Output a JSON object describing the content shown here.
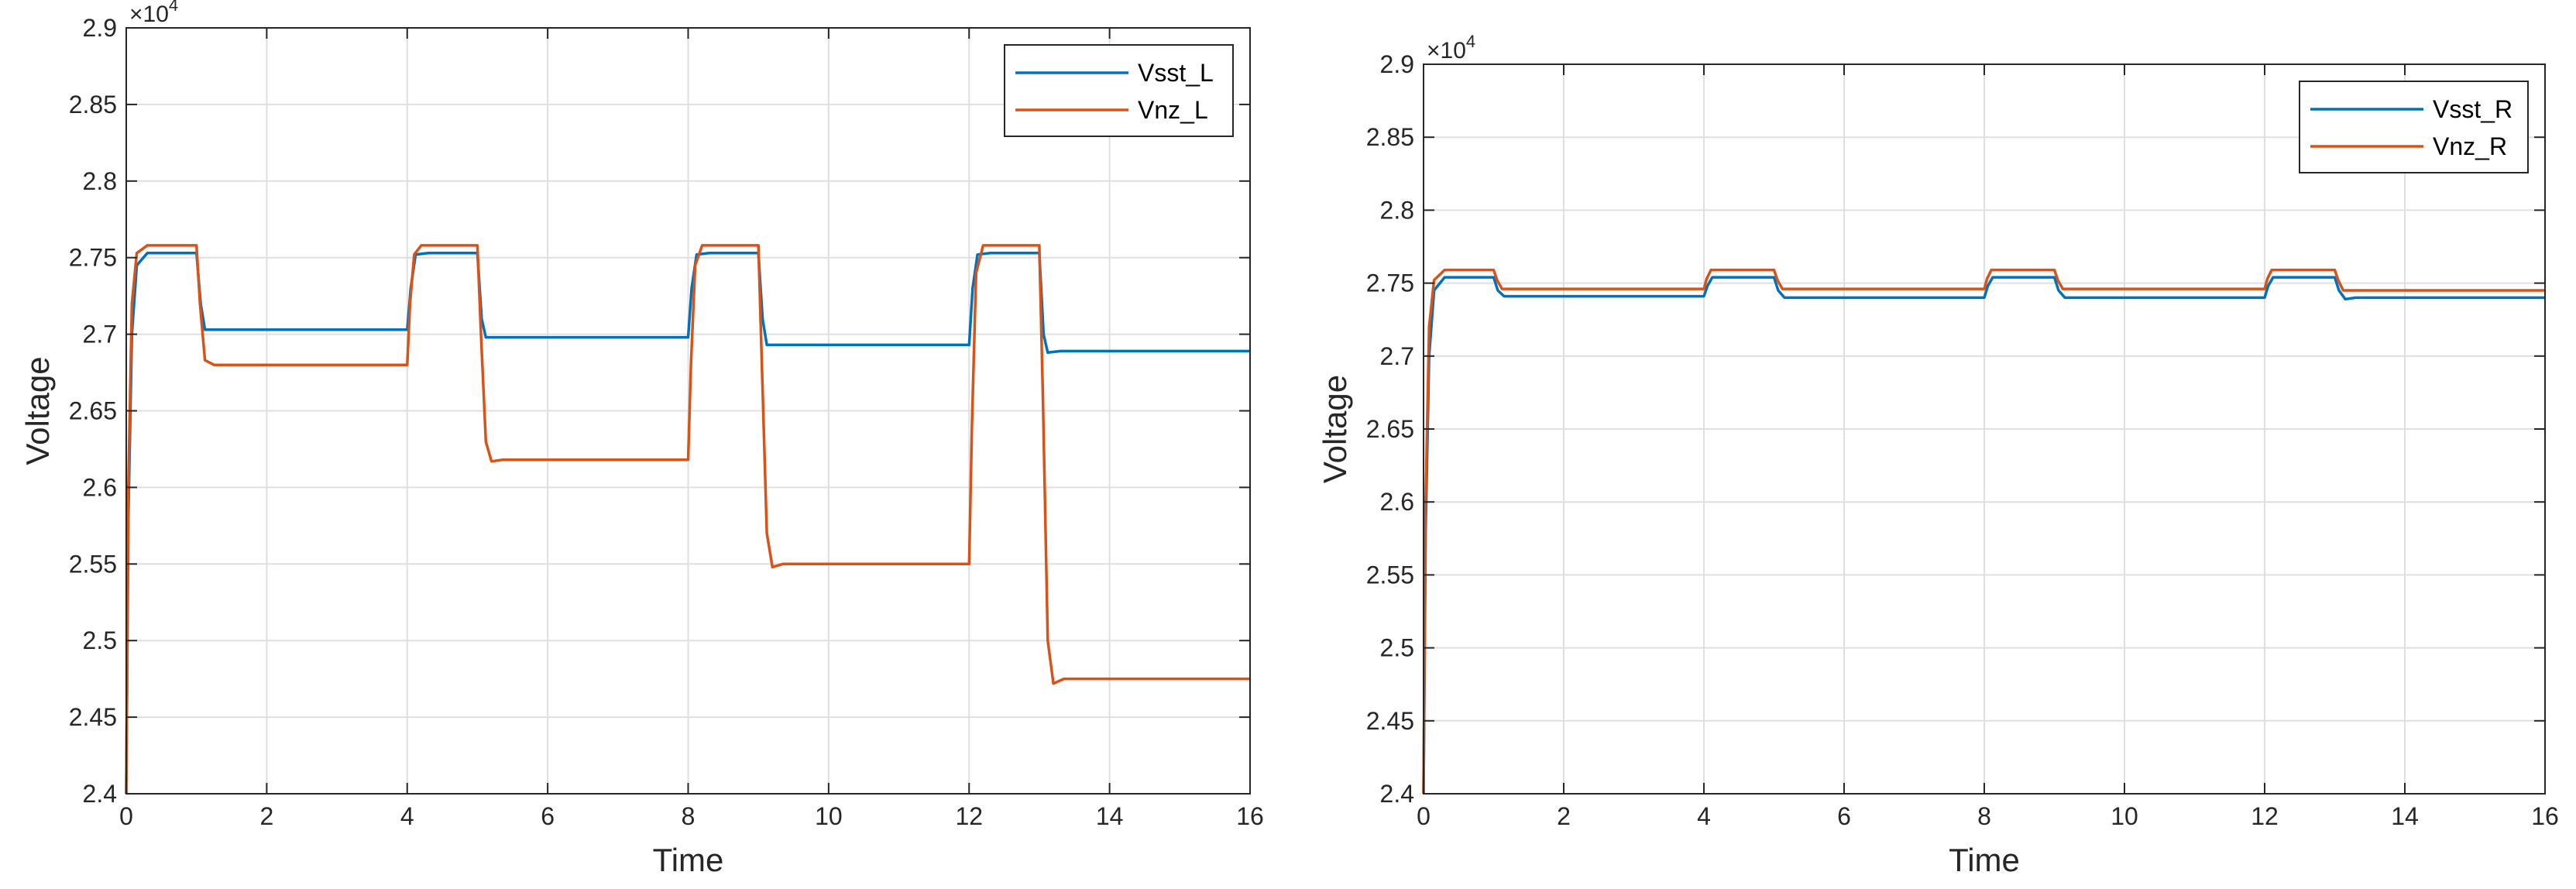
{
  "chart_data": [
    {
      "type": "line",
      "xlabel": "Time",
      "ylabel": "Voltage",
      "exponent_label": "×10",
      "exponent_power": "4",
      "xlim": [
        0,
        16
      ],
      "ylim": [
        2.4,
        2.9
      ],
      "x_ticks": [
        0,
        2,
        4,
        6,
        8,
        10,
        12,
        14,
        16
      ],
      "y_ticks": [
        2.4,
        2.45,
        2.5,
        2.55,
        2.6,
        2.65,
        2.7,
        2.75,
        2.8,
        2.85,
        2.9
      ],
      "x_tick_labels": [
        "0",
        "2",
        "4",
        "6",
        "8",
        "10",
        "12",
        "14",
        "16"
      ],
      "y_tick_labels": [
        "2.4",
        "2.45",
        "2.5",
        "2.55",
        "2.6",
        "2.65",
        "2.7",
        "2.75",
        "2.8",
        "2.85",
        "2.9"
      ],
      "grid": true,
      "legend_position": "top-right",
      "series": [
        {
          "name": "Vsst_L",
          "color": "#0072BD",
          "points": [
            [
              0,
              2.4
            ],
            [
              0.03,
              2.58
            ],
            [
              0.08,
              2.7
            ],
            [
              0.15,
              2.745
            ],
            [
              0.3,
              2.753
            ],
            [
              1.0,
              2.753
            ],
            [
              1.06,
              2.72
            ],
            [
              1.12,
              2.703
            ],
            [
              1.3,
              2.703
            ],
            [
              4.0,
              2.703
            ],
            [
              4.05,
              2.73
            ],
            [
              4.12,
              2.752
            ],
            [
              4.3,
              2.753
            ],
            [
              5.0,
              2.753
            ],
            [
              5.06,
              2.71
            ],
            [
              5.12,
              2.698
            ],
            [
              5.3,
              2.698
            ],
            [
              8.0,
              2.698
            ],
            [
              8.05,
              2.73
            ],
            [
              8.12,
              2.752
            ],
            [
              8.3,
              2.753
            ],
            [
              9.0,
              2.753
            ],
            [
              9.06,
              2.71
            ],
            [
              9.12,
              2.693
            ],
            [
              9.3,
              2.693
            ],
            [
              12.0,
              2.693
            ],
            [
              12.05,
              2.73
            ],
            [
              12.12,
              2.752
            ],
            [
              12.3,
              2.753
            ],
            [
              13.0,
              2.753
            ],
            [
              13.06,
              2.7
            ],
            [
              13.12,
              2.688
            ],
            [
              13.3,
              2.689
            ],
            [
              16.0,
              2.689
            ]
          ]
        },
        {
          "name": "Vnz_L",
          "color": "#D95319",
          "points": [
            [
              0,
              2.4
            ],
            [
              0.03,
              2.6
            ],
            [
              0.08,
              2.72
            ],
            [
              0.15,
              2.753
            ],
            [
              0.3,
              2.758
            ],
            [
              1.0,
              2.758
            ],
            [
              1.05,
              2.72
            ],
            [
              1.12,
              2.683
            ],
            [
              1.25,
              2.68
            ],
            [
              4.0,
              2.68
            ],
            [
              4.04,
              2.72
            ],
            [
              4.1,
              2.752
            ],
            [
              4.2,
              2.758
            ],
            [
              5.0,
              2.758
            ],
            [
              5.05,
              2.7
            ],
            [
              5.12,
              2.63
            ],
            [
              5.2,
              2.617
            ],
            [
              5.35,
              2.618
            ],
            [
              8.0,
              2.618
            ],
            [
              8.04,
              2.68
            ],
            [
              8.1,
              2.745
            ],
            [
              8.2,
              2.758
            ],
            [
              9.0,
              2.758
            ],
            [
              9.05,
              2.68
            ],
            [
              9.12,
              2.57
            ],
            [
              9.2,
              2.548
            ],
            [
              9.35,
              2.55
            ],
            [
              12.0,
              2.55
            ],
            [
              12.04,
              2.64
            ],
            [
              12.1,
              2.74
            ],
            [
              12.2,
              2.758
            ],
            [
              13.0,
              2.758
            ],
            [
              13.05,
              2.66
            ],
            [
              13.12,
              2.5
            ],
            [
              13.2,
              2.472
            ],
            [
              13.35,
              2.475
            ],
            [
              16.0,
              2.475
            ]
          ]
        }
      ]
    },
    {
      "type": "line",
      "xlabel": "Time",
      "ylabel": "Voltage",
      "exponent_label": "×10",
      "exponent_power": "4",
      "xlim": [
        0,
        16
      ],
      "ylim": [
        2.4,
        2.9
      ],
      "x_ticks": [
        0,
        2,
        4,
        6,
        8,
        10,
        12,
        14,
        16
      ],
      "y_ticks": [
        2.4,
        2.45,
        2.5,
        2.55,
        2.6,
        2.65,
        2.7,
        2.75,
        2.8,
        2.85,
        2.9
      ],
      "x_tick_labels": [
        "0",
        "2",
        "4",
        "6",
        "8",
        "10",
        "12",
        "14",
        "16"
      ],
      "y_tick_labels": [
        "2.4",
        "2.45",
        "2.5",
        "2.55",
        "2.6",
        "2.65",
        "2.7",
        "2.75",
        "2.8",
        "2.85",
        "2.9"
      ],
      "grid": true,
      "legend_position": "top-right",
      "series": [
        {
          "name": "Vsst_R",
          "color": "#0072BD",
          "points": [
            [
              0,
              2.4
            ],
            [
              0.03,
              2.58
            ],
            [
              0.08,
              2.7
            ],
            [
              0.15,
              2.745
            ],
            [
              0.3,
              2.754
            ],
            [
              1.0,
              2.754
            ],
            [
              1.06,
              2.745
            ],
            [
              1.15,
              2.741
            ],
            [
              1.3,
              2.741
            ],
            [
              4.0,
              2.741
            ],
            [
              4.05,
              2.748
            ],
            [
              4.12,
              2.754
            ],
            [
              5.0,
              2.754
            ],
            [
              5.06,
              2.745
            ],
            [
              5.15,
              2.74
            ],
            [
              5.3,
              2.74
            ],
            [
              8.0,
              2.74
            ],
            [
              8.05,
              2.748
            ],
            [
              8.12,
              2.754
            ],
            [
              9.0,
              2.754
            ],
            [
              9.06,
              2.745
            ],
            [
              9.15,
              2.74
            ],
            [
              9.3,
              2.74
            ],
            [
              12.0,
              2.74
            ],
            [
              12.05,
              2.748
            ],
            [
              12.12,
              2.754
            ],
            [
              13.0,
              2.754
            ],
            [
              13.06,
              2.745
            ],
            [
              13.15,
              2.739
            ],
            [
              13.3,
              2.74
            ],
            [
              16.0,
              2.74
            ]
          ]
        },
        {
          "name": "Vnz_R",
          "color": "#D95319",
          "points": [
            [
              0,
              2.4
            ],
            [
              0.03,
              2.6
            ],
            [
              0.08,
              2.72
            ],
            [
              0.15,
              2.752
            ],
            [
              0.3,
              2.759
            ],
            [
              1.0,
              2.759
            ],
            [
              1.05,
              2.752
            ],
            [
              1.12,
              2.746
            ],
            [
              1.3,
              2.746
            ],
            [
              4.0,
              2.746
            ],
            [
              4.04,
              2.753
            ],
            [
              4.1,
              2.759
            ],
            [
              5.0,
              2.759
            ],
            [
              5.05,
              2.752
            ],
            [
              5.12,
              2.746
            ],
            [
              5.3,
              2.746
            ],
            [
              8.0,
              2.746
            ],
            [
              8.04,
              2.753
            ],
            [
              8.1,
              2.759
            ],
            [
              9.0,
              2.759
            ],
            [
              9.05,
              2.752
            ],
            [
              9.12,
              2.746
            ],
            [
              9.3,
              2.746
            ],
            [
              12.0,
              2.746
            ],
            [
              12.04,
              2.753
            ],
            [
              12.1,
              2.759
            ],
            [
              13.0,
              2.759
            ],
            [
              13.05,
              2.752
            ],
            [
              13.12,
              2.745
            ],
            [
              13.3,
              2.745
            ],
            [
              16.0,
              2.745
            ]
          ]
        }
      ]
    }
  ]
}
